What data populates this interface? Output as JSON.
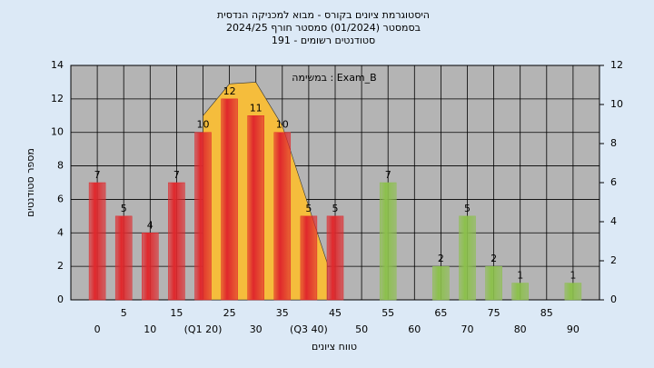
{
  "chart_data": {
    "type": "bar",
    "title": [
      "היסטוגרמת ציונים בקורס - מבוא למכניקה הנדסית",
      "בסמסטר  (01/2024)  סמסטר חורף 2024/25",
      "סטודנטים רשומים - 191"
    ],
    "annotation": "במשימה : Exam_B",
    "x_label": "טווח ציונים",
    "y_label": "מספר סטודנטים",
    "categories": [
      "0",
      "5",
      "10",
      "15",
      "(Q1 20)",
      "25",
      "30",
      "35",
      "(Q3 40)",
      "45",
      "50",
      "55",
      "60",
      "65",
      "70",
      "75",
      "80",
      "85",
      "90"
    ],
    "values": [
      7,
      5,
      4,
      7,
      10,
      12,
      11,
      10,
      5,
      5,
      null,
      7,
      null,
      2,
      5,
      2,
      1,
      null,
      1
    ],
    "colors": [
      "#e0282c",
      "#e0282c",
      "#e0282c",
      "#e0282c",
      "#e0282c",
      "#e0282c",
      "#e0282c",
      "#e0282c",
      "#e0282c",
      "#e0282c",
      "#e0282c",
      "#8cc04c",
      "#8cc04c",
      "#8cc04c",
      "#8cc04c",
      "#8cc04c",
      "#8cc04c",
      "#8cc04c",
      "#8cc04c"
    ],
    "area": {
      "color": "#f5bd3c",
      "x_index": [
        4,
        5,
        6,
        7,
        8.7
      ],
      "values": [
        11,
        12.9,
        13,
        10.4,
        2.2
      ]
    },
    "ylim": [
      0,
      14
    ],
    "yticks": [
      0,
      2,
      4,
      6,
      8,
      10,
      12,
      14
    ],
    "y2lim": [
      0,
      12
    ],
    "y2ticks": [
      0,
      2,
      4,
      6,
      8,
      10,
      12
    ],
    "grid": true
  }
}
